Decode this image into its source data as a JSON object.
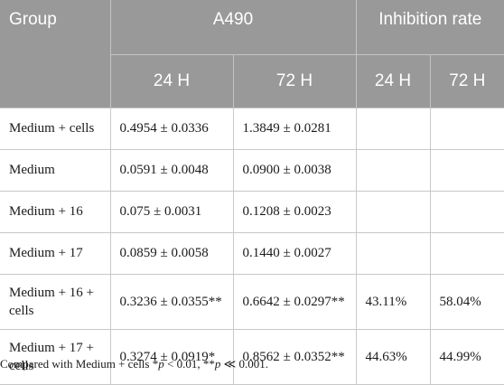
{
  "header": {
    "group": "Group",
    "a490": "A490",
    "inhibition": "Inhibition rate",
    "sub": [
      "24 H",
      "72 H",
      "24 H",
      "72 H"
    ]
  },
  "rows": [
    {
      "group": "Medium + cells",
      "a24": "0.4954 ± 0.0336",
      "a72": "1.3849 ± 0.0281",
      "i24": "",
      "i72": ""
    },
    {
      "group": "Medium",
      "a24": "0.0591 ± 0.0048",
      "a72": "0.0900 ± 0.0038",
      "i24": "",
      "i72": ""
    },
    {
      "group": "Medium + 16",
      "a24": "0.075 ± 0.0031",
      "a72": "0.1208 ± 0.0023",
      "i24": "",
      "i72": ""
    },
    {
      "group": "Medium + 17",
      "a24": "0.0859 ± 0.0058",
      "a72": "0.1440 ± 0.0027",
      "i24": "",
      "i72": ""
    },
    {
      "group": "Medium + 16 + cells",
      "a24": "0.3236 ± 0.0355**",
      "a72": "0.6642 ± 0.0297**",
      "i24": "43.11%",
      "i72": "58.04%"
    },
    {
      "group": "Medium + 17 + cells",
      "a24": "0.3274 ± 0.0919*",
      "a72": "0.8562 ± 0.0352**",
      "i24": "44.63%",
      "i72": "44.99%"
    }
  ],
  "footnote": {
    "prefix": "Compared with Medium + cells *",
    "p1": "p",
    "mid": " < 0.01, **",
    "p2": "p",
    "suffix": " ≪ 0.001."
  }
}
